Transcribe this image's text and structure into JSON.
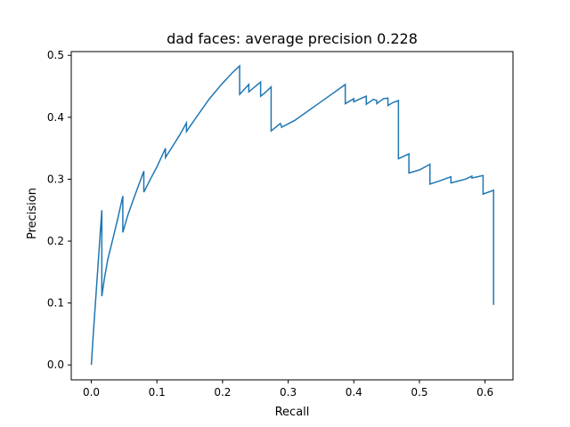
{
  "chart_data": {
    "type": "line",
    "title": "dad faces: average precision 0.228",
    "xlabel": "Recall",
    "ylabel": "Precision",
    "xlim": [
      -0.0306,
      0.6426
    ],
    "ylim": [
      -0.0241,
      0.5061
    ],
    "xticks": [
      0.0,
      0.1,
      0.2,
      0.3,
      0.4,
      0.5,
      0.6
    ],
    "xtick_labels": [
      "0.0",
      "0.1",
      "0.2",
      "0.3",
      "0.4",
      "0.5",
      "0.6"
    ],
    "yticks": [
      0.0,
      0.1,
      0.2,
      0.3,
      0.4,
      0.5
    ],
    "ytick_labels": [
      "0.0",
      "0.1",
      "0.2",
      "0.3",
      "0.4",
      "0.5"
    ],
    "grid": false,
    "series": [
      {
        "color": "#1f77b4",
        "x": [
          0.0,
          0.003,
          0.016,
          0.016,
          0.02,
          0.025,
          0.032,
          0.04,
          0.048,
          0.048,
          0.055,
          0.065,
          0.08,
          0.08,
          0.09,
          0.1,
          0.113,
          0.113,
          0.125,
          0.135,
          0.145,
          0.145,
          0.16,
          0.18,
          0.2,
          0.215,
          0.226,
          0.226,
          0.24,
          0.24,
          0.25,
          0.258,
          0.258,
          0.265,
          0.274,
          0.274,
          0.288,
          0.29,
          0.29,
          0.31,
          0.35,
          0.387,
          0.387,
          0.4,
          0.4,
          0.41,
          0.419,
          0.419,
          0.43,
          0.435,
          0.435,
          0.445,
          0.452,
          0.452,
          0.46,
          0.468,
          0.468,
          0.484,
          0.484,
          0.5,
          0.516,
          0.516,
          0.53,
          0.548,
          0.548,
          0.57,
          0.58,
          0.58,
          0.597,
          0.597,
          0.613,
          0.613
        ],
        "y": [
          0.0,
          0.05,
          0.25,
          0.111,
          0.14,
          0.17,
          0.2,
          0.235,
          0.273,
          0.214,
          0.24,
          0.27,
          0.313,
          0.279,
          0.3,
          0.32,
          0.35,
          0.335,
          0.355,
          0.372,
          0.391,
          0.377,
          0.4,
          0.43,
          0.455,
          0.472,
          0.483,
          0.437,
          0.453,
          0.441,
          0.45,
          0.457,
          0.434,
          0.44,
          0.449,
          0.378,
          0.39,
          0.385,
          0.384,
          0.395,
          0.425,
          0.453,
          0.422,
          0.43,
          0.425,
          0.43,
          0.434,
          0.421,
          0.429,
          0.427,
          0.422,
          0.43,
          0.431,
          0.419,
          0.424,
          0.427,
          0.333,
          0.341,
          0.31,
          0.315,
          0.324,
          0.292,
          0.297,
          0.304,
          0.294,
          0.3,
          0.305,
          0.302,
          0.306,
          0.276,
          0.282,
          0.097
        ]
      }
    ]
  }
}
